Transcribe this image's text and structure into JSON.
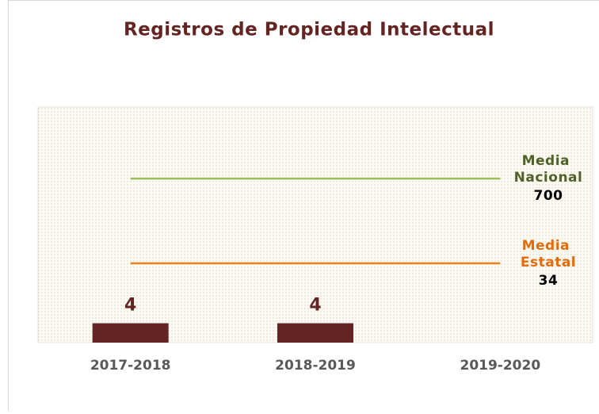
{
  "chart_data": {
    "type": "bar",
    "title": "Registros de Propiedad Intelectual",
    "categories": [
      "2017-2018",
      "2018-2019",
      "2019-2020"
    ],
    "values": [
      4,
      4,
      null
    ],
    "color": "#632523",
    "log_scale": true,
    "ylim": [
      2,
      9000
    ],
    "reference_lines": [
      {
        "label": "Media Nacional",
        "value": 700,
        "color": "#9bbb59",
        "label_color": "#4f6228"
      },
      {
        "label": "Media Estatal",
        "value": 34,
        "color": "#f07f1e",
        "label_color": "#e36c0a"
      }
    ]
  }
}
